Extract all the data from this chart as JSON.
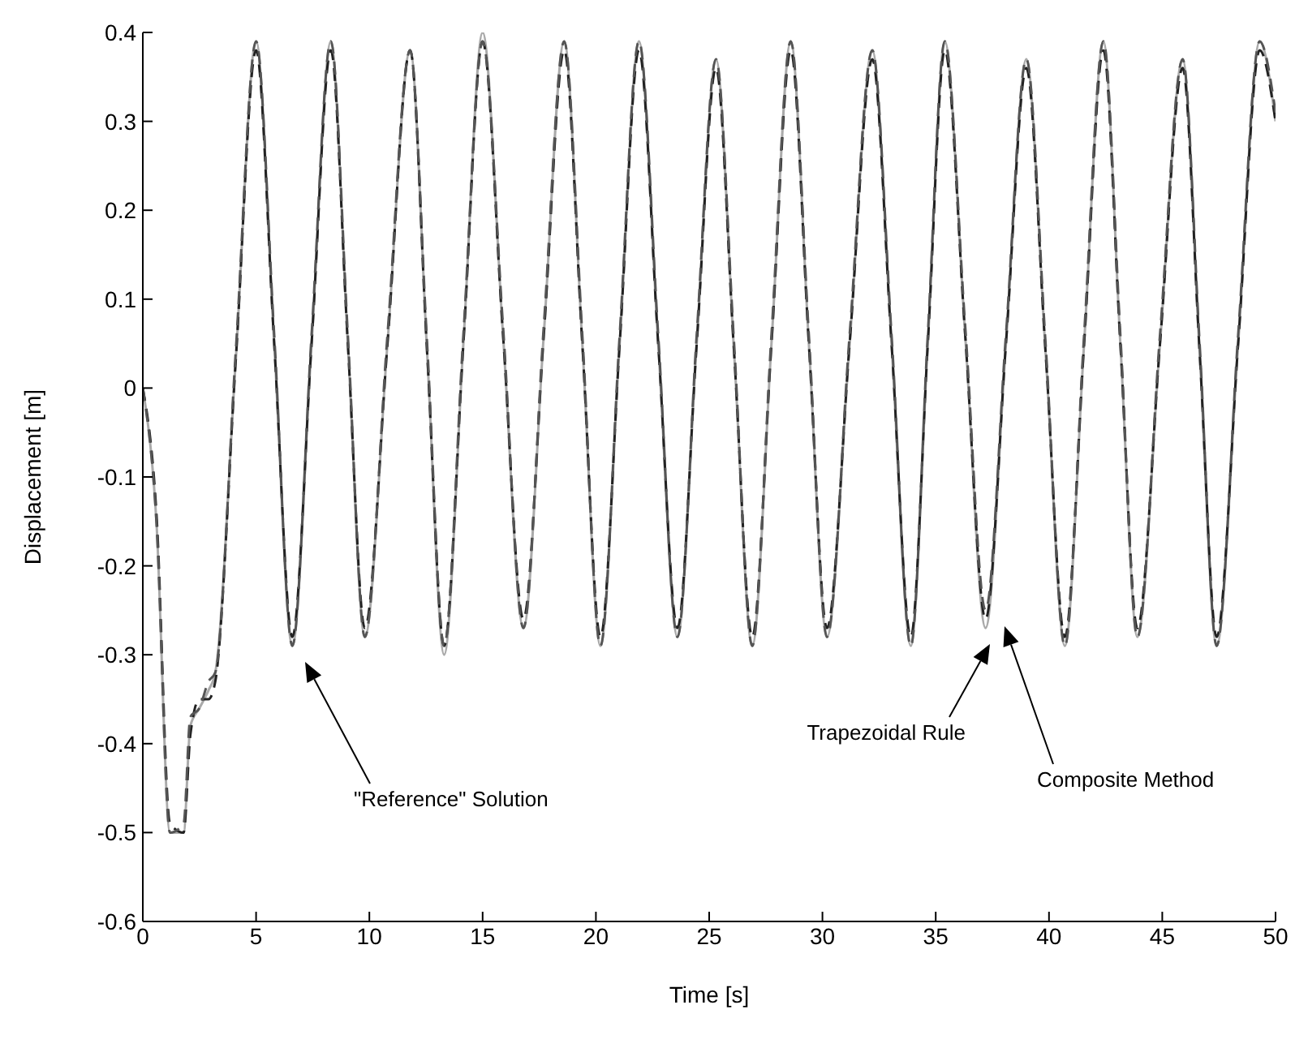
{
  "chart_data": {
    "type": "line",
    "xlabel": "Time [s]",
    "ylabel": "Displacement [m]",
    "x": [
      0,
      0.6,
      1.2,
      1.8,
      2.1,
      2.5,
      2.9,
      3.2,
      4.1,
      5.0,
      5.8,
      6.6,
      7.45,
      8.3,
      9.05,
      9.8,
      10.8,
      11.8,
      12.55,
      13.3,
      14.15,
      15.0,
      15.9,
      16.8,
      17.7,
      18.6,
      19.4,
      20.2,
      21.05,
      21.9,
      22.75,
      23.6,
      24.45,
      25.3,
      26.1,
      26.9,
      27.75,
      28.6,
      29.4,
      30.2,
      31.2,
      32.2,
      33.05,
      33.9,
      34.65,
      35.4,
      36.3,
      37.2,
      38.1,
      39.0,
      39.85,
      40.7,
      41.55,
      42.4,
      43.15,
      43.9,
      44.9,
      45.9,
      46.65,
      47.4,
      48.35,
      49.3,
      50
    ],
    "series": [
      {
        "color": "#aaaaaa",
        "line_style": "solid",
        "values": [
          0,
          -0.15,
          -0.5,
          -0.5,
          -0.38,
          -0.36,
          -0.34,
          -0.32,
          0.03,
          0.39,
          0.05,
          -0.29,
          0.05,
          0.39,
          0.05,
          -0.28,
          0.05,
          0.38,
          0.04,
          -0.3,
          0.05,
          0.4,
          0.06,
          -0.27,
          0.06,
          0.39,
          0.05,
          -0.29,
          0.05,
          0.39,
          0.05,
          -0.28,
          0.05,
          0.37,
          0.04,
          -0.29,
          0.05,
          0.39,
          0.05,
          -0.28,
          0.05,
          0.38,
          0.05,
          -0.29,
          0.05,
          0.39,
          0.06,
          -0.27,
          0.05,
          0.37,
          0.04,
          -0.29,
          0.05,
          0.39,
          0.05,
          -0.28,
          0.05,
          0.37,
          0.04,
          -0.29,
          0.05,
          0.39,
          0.3
        ]
      },
      {
        "color": "#222222",
        "line_style": "dashed",
        "values": [
          0,
          -0.14,
          -0.49,
          -0.5,
          -0.39,
          -0.35,
          -0.35,
          -0.33,
          0.03,
          0.38,
          0.05,
          -0.28,
          0.05,
          0.38,
          0.05,
          -0.27,
          0.05,
          0.38,
          0.04,
          -0.29,
          0.05,
          0.39,
          0.06,
          -0.26,
          0.06,
          0.38,
          0.05,
          -0.28,
          0.05,
          0.38,
          0.05,
          -0.27,
          0.05,
          0.36,
          0.04,
          -0.28,
          0.05,
          0.38,
          0.05,
          -0.27,
          0.05,
          0.37,
          0.05,
          -0.28,
          0.05,
          0.38,
          0.06,
          -0.26,
          0.05,
          0.36,
          0.04,
          -0.28,
          0.05,
          0.38,
          0.05,
          -0.27,
          0.05,
          0.36,
          0.04,
          -0.28,
          0.05,
          0.38,
          0.3
        ]
      },
      {
        "color": "#555555",
        "line_style": "dashed",
        "values": [
          0,
          -0.15,
          -0.5,
          -0.49,
          -0.37,
          -0.36,
          -0.33,
          -0.32,
          0.04,
          0.39,
          0.06,
          -0.29,
          0.06,
          0.39,
          0.06,
          -0.28,
          0.06,
          0.38,
          0.05,
          -0.29,
          0.06,
          0.39,
          0.07,
          -0.27,
          0.07,
          0.39,
          0.06,
          -0.29,
          0.06,
          0.39,
          0.06,
          -0.28,
          0.06,
          0.37,
          0.05,
          -0.29,
          0.06,
          0.39,
          0.06,
          -0.28,
          0.06,
          0.38,
          0.06,
          -0.29,
          0.06,
          0.39,
          0.07,
          -0.25,
          0.06,
          0.37,
          0.05,
          -0.29,
          0.06,
          0.39,
          0.06,
          -0.28,
          0.06,
          0.37,
          0.05,
          -0.29,
          0.06,
          0.39,
          0.31
        ]
      }
    ],
    "xlim": [
      0,
      50
    ],
    "xticks": [
      0,
      5,
      10,
      15,
      20,
      25,
      30,
      35,
      40,
      45,
      50
    ],
    "ylim": [
      -0.6,
      0.4
    ],
    "yticks": [
      -0.6,
      -0.5,
      -0.4,
      -0.3,
      -0.2,
      -0.1,
      0,
      0.1,
      0.2,
      0.3,
      0.4
    ],
    "annotations": [
      "\"Reference\" Solution",
      "Trapezoidal Rule",
      "Composite Method"
    ]
  }
}
